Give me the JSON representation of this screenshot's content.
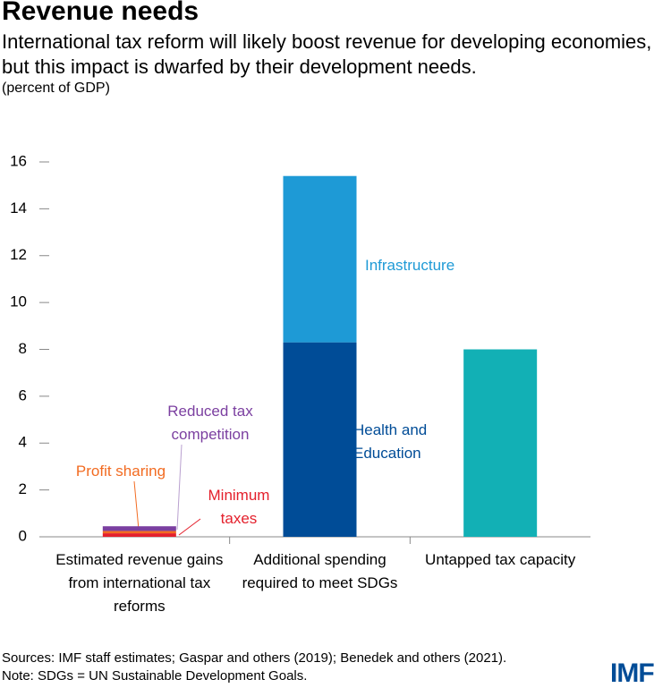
{
  "chart_data": {
    "type": "stacked_bar",
    "title": "Revenue needs",
    "subtitle": "International tax reform will likely boost revenue for developing economies, but this impact is dwarfed by their development needs.",
    "unit_label": "(percent of GDP)",
    "categories": [
      "Estimated revenue gains from international tax reforms",
      "Additional spending required to meet SDGs",
      "Untapped tax capacity"
    ],
    "series": [
      {
        "name": "Minimum taxes",
        "color": "#e4202c",
        "values": [
          0.15,
          null,
          null
        ]
      },
      {
        "name": "Profit sharing",
        "color": "#f26b21",
        "values": [
          0.1,
          null,
          null
        ]
      },
      {
        "name": "Reduced tax competition",
        "color": "#7b3fa0",
        "values": [
          0.2,
          null,
          null
        ]
      },
      {
        "name": "Health and Education",
        "color": "#004c97",
        "values": [
          null,
          8.3,
          null
        ]
      },
      {
        "name": "Infrastructure",
        "color": "#1e9ad6",
        "values": [
          null,
          7.1,
          null
        ]
      },
      {
        "color": "#12b0b5",
        "values": [
          null,
          null,
          8.0
        ]
      }
    ],
    "ylim": [
      0,
      16
    ],
    "yticks": [
      0,
      2,
      4,
      6,
      8,
      10,
      12,
      14,
      16
    ],
    "source": "Sources: IMF staff estimates; Gaspar and others (2019); Benedek and others (2021).",
    "note": "Note: SDGs = UN Sustainable Development Goals.",
    "logo": "IMF"
  }
}
